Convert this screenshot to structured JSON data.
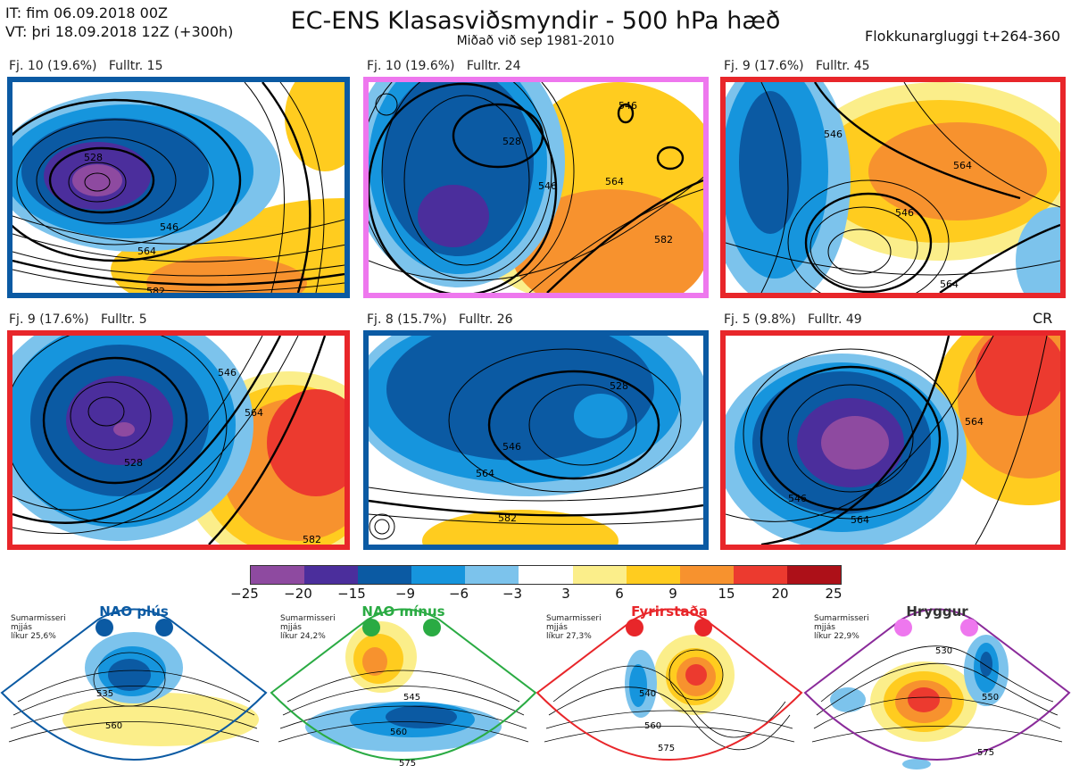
{
  "header": {
    "it_line": "IT: fim 06.09.2018 00Z",
    "vt_line": "VT: þri 18.09.2018 12Z  (+300h)",
    "title": "EC-ENS Klasasviðsmyndir - 500 hPa hæð",
    "subtitle": "Miðað við sep 1981-2010",
    "window": "Flokkunargluggi t+264-360"
  },
  "panels": [
    {
      "caption": "Fj. 10 (19.6%)   Fulltr. 15",
      "frame_color": "#0b5aa3",
      "contours": [
        "528",
        "546",
        "564",
        "582"
      ]
    },
    {
      "caption": "Fj. 10 (19.6%)   Fulltr. 24",
      "frame_color": "#ee77ee",
      "contours": [
        "546",
        "528",
        "546",
        "564",
        "582"
      ]
    },
    {
      "caption": "Fj. 9 (17.6%)   Fulltr. 45",
      "frame_color": "#e8262a",
      "contours": [
        "546",
        "564",
        "546",
        "564"
      ]
    },
    {
      "caption": "Fj. 9 (17.6%)   Fulltr. 5",
      "frame_color": "#e8262a",
      "contours": [
        "528",
        "546",
        "564",
        "582"
      ]
    },
    {
      "caption": "Fj. 8 (15.7%)   Fulltr. 26",
      "frame_color": "#0b5aa3",
      "contours": [
        "528",
        "546",
        "564",
        "582"
      ]
    },
    {
      "caption": "Fj. 5 (9.8%)   Fulltr. 49",
      "frame_color": "#e8262a",
      "contours": [
        "546",
        "564",
        "564"
      ]
    }
  ],
  "cr_label": "CR",
  "colorbar": {
    "ticks": [
      "−25",
      "−20",
      "−15",
      "−9",
      "−6",
      "−3",
      "3",
      "6",
      "9",
      "15",
      "20",
      "25"
    ],
    "colors": [
      "#8e4aa0",
      "#4b2e9c",
      "#0b5aa3",
      "#1695dd",
      "#7cc3ec",
      "#ffffff",
      "#fbee8a",
      "#ffcc1f",
      "#f7922e",
      "#ec3a2f",
      "#ad1018"
    ]
  },
  "regimes": [
    {
      "name": "NAO plús",
      "note": [
        "Sumarmisseri",
        "mjjás",
        "líkur 25,6%"
      ],
      "color": "#0b5aa3",
      "contours": [
        "535",
        "560"
      ]
    },
    {
      "name": "NAO mínus",
      "note": [
        "Sumarmisseri",
        "mjjás",
        "líkur 24,2%"
      ],
      "color": "#2aab43",
      "contours": [
        "545",
        "560",
        "575"
      ]
    },
    {
      "name": "Fyrirstaða",
      "note": [
        "Sumarmisseri",
        "mjjás",
        "líkur 27,3%"
      ],
      "color": "#e8262a",
      "contours": [
        "540",
        "560",
        "575"
      ]
    },
    {
      "name": "Hryggur",
      "note": [
        "Sumarmisseri",
        "mjjás",
        "líkur 22,9%"
      ],
      "color": "#ee77ee",
      "contours": [
        "530",
        "550",
        "575"
      ]
    }
  ]
}
